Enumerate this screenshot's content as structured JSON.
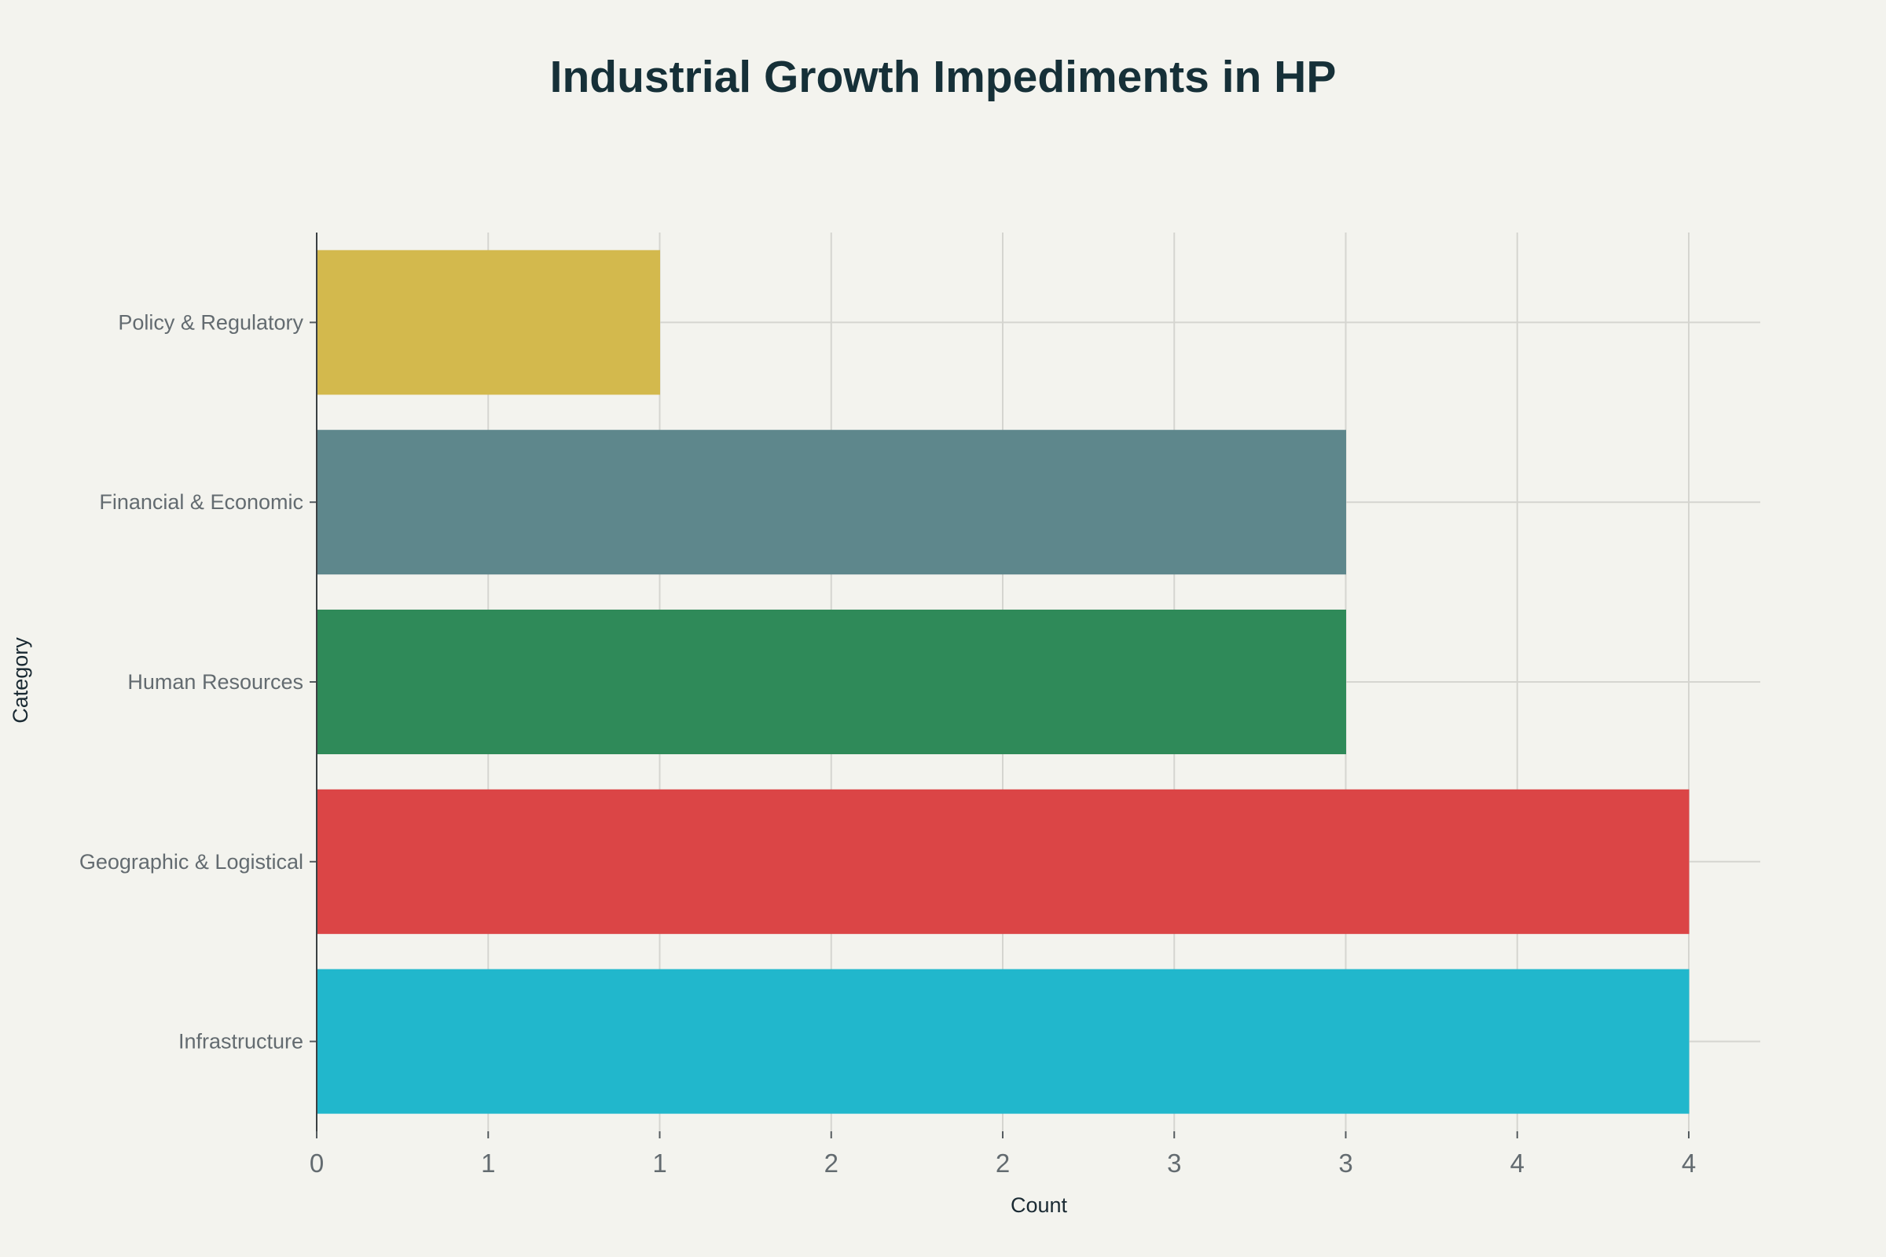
{
  "chart_data": {
    "type": "bar",
    "orientation": "horizontal",
    "title": "Industrial Growth Impediments in HP",
    "xlabel": "Count",
    "ylabel": "Category",
    "categories": [
      "Infrastructure",
      "Geographic & Logistical",
      "Human Resources",
      "Financial & Economic",
      "Policy & Regulatory"
    ],
    "values": [
      4,
      4,
      3,
      3,
      1
    ],
    "colors": [
      "#21B7CC",
      "#DB4546",
      "#2F8A59",
      "#5E878C",
      "#D3B94D"
    ],
    "xlim": [
      0,
      4.2
    ],
    "x_ticks": [
      0,
      0.5,
      1,
      1.5,
      2,
      2.5,
      3,
      3.5,
      4
    ],
    "x_tick_labels": [
      "0",
      "1",
      "1",
      "2",
      "2",
      "3",
      "3",
      "4",
      "4"
    ],
    "grid": true,
    "legend": "none",
    "background": "#F3F3EE"
  }
}
